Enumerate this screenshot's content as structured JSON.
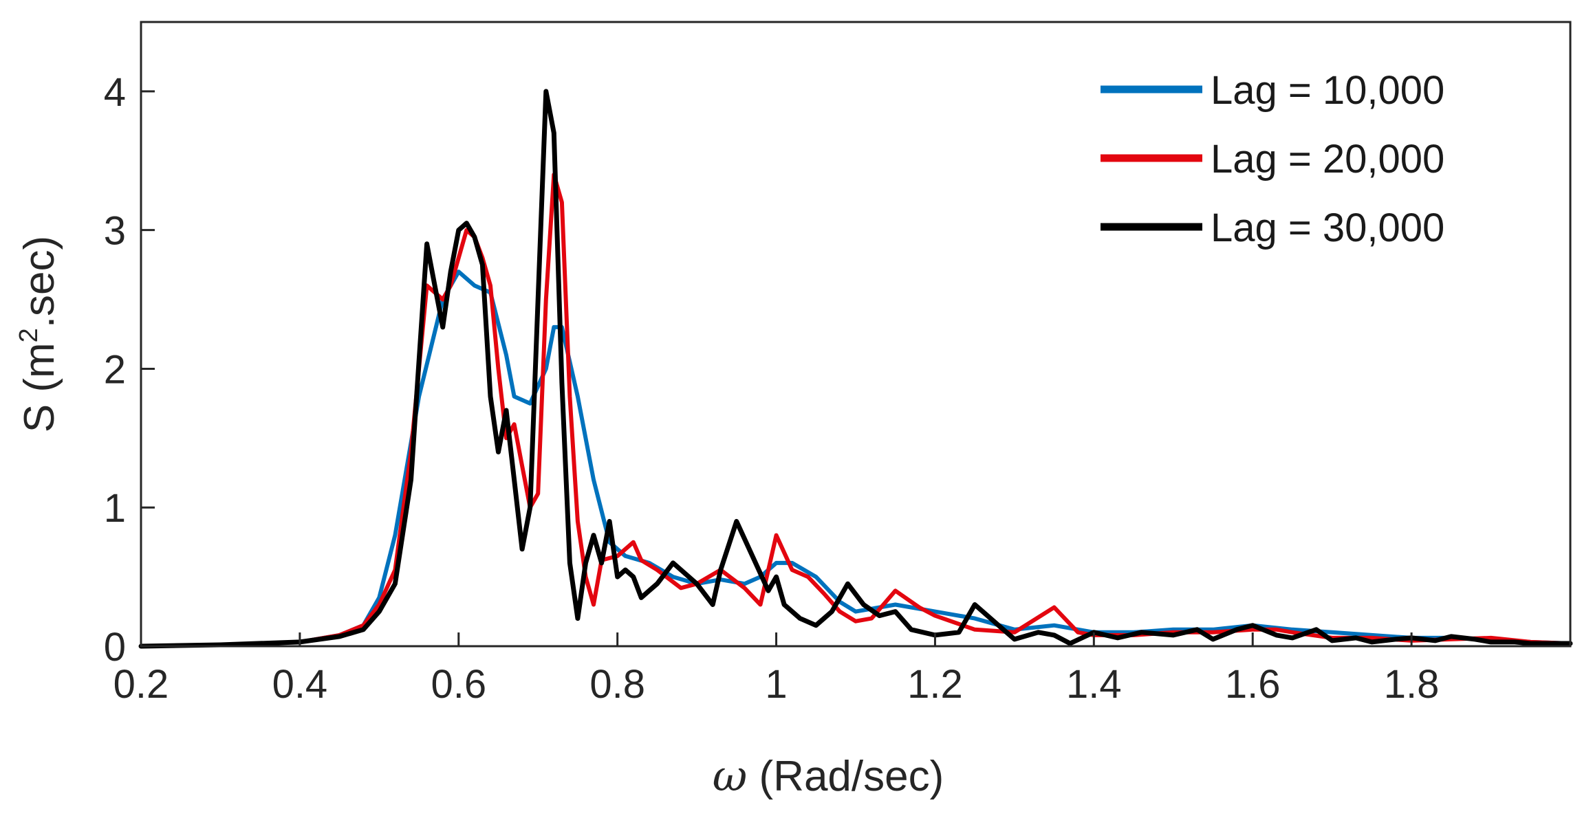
{
  "chart_data": {
    "type": "line",
    "xlabel_symbol": "ω",
    "xlabel_text": " (Rad/sec)",
    "ylabel_prefix": "S (m",
    "ylabel_sup": "2",
    "ylabel_suffix": ".sec)",
    "xlim": [
      0.2,
      2.0
    ],
    "ylim": [
      0,
      4.5
    ],
    "xticks": [
      0.2,
      0.4,
      0.6,
      0.8,
      1.0,
      1.2,
      1.4,
      1.6,
      1.8
    ],
    "xtick_labels": [
      "0.2",
      "0.4",
      "0.6",
      "0.8",
      "1",
      "1.2",
      "1.4",
      "1.6",
      "1.8"
    ],
    "yticks": [
      0,
      1,
      2,
      3,
      4
    ],
    "ytick_labels": [
      "0",
      "1",
      "2",
      "3",
      "4"
    ],
    "grid": false,
    "legend_position": "top-right",
    "series": [
      {
        "name": "Lag = 10,000",
        "color": "#0072BD",
        "x": [
          0.2,
          0.3,
          0.4,
          0.45,
          0.48,
          0.5,
          0.52,
          0.55,
          0.58,
          0.6,
          0.62,
          0.64,
          0.66,
          0.67,
          0.69,
          0.71,
          0.72,
          0.73,
          0.75,
          0.77,
          0.79,
          0.81,
          0.84,
          0.87,
          0.9,
          0.93,
          0.96,
          0.98,
          1.0,
          1.02,
          1.05,
          1.08,
          1.1,
          1.15,
          1.2,
          1.25,
          1.3,
          1.35,
          1.4,
          1.45,
          1.5,
          1.55,
          1.6,
          1.65,
          1.7,
          1.75,
          1.8,
          1.85,
          1.9,
          1.95,
          2.0
        ],
        "y": [
          0.0,
          0.01,
          0.03,
          0.08,
          0.15,
          0.35,
          0.8,
          1.8,
          2.5,
          2.7,
          2.6,
          2.55,
          2.1,
          1.8,
          1.75,
          2.0,
          2.3,
          2.3,
          1.8,
          1.2,
          0.75,
          0.65,
          0.6,
          0.5,
          0.45,
          0.48,
          0.45,
          0.5,
          0.6,
          0.6,
          0.5,
          0.32,
          0.25,
          0.3,
          0.25,
          0.2,
          0.12,
          0.15,
          0.1,
          0.1,
          0.12,
          0.12,
          0.15,
          0.12,
          0.1,
          0.08,
          0.06,
          0.06,
          0.05,
          0.03,
          0.02
        ]
      },
      {
        "name": "Lag = 20,000",
        "color": "#E3060F",
        "x": [
          0.2,
          0.3,
          0.4,
          0.45,
          0.48,
          0.5,
          0.52,
          0.54,
          0.56,
          0.58,
          0.59,
          0.6,
          0.61,
          0.62,
          0.63,
          0.64,
          0.65,
          0.66,
          0.67,
          0.68,
          0.69,
          0.7,
          0.71,
          0.72,
          0.73,
          0.74,
          0.75,
          0.76,
          0.77,
          0.78,
          0.8,
          0.82,
          0.83,
          0.85,
          0.88,
          0.9,
          0.93,
          0.96,
          0.98,
          1.0,
          1.02,
          1.04,
          1.06,
          1.08,
          1.1,
          1.12,
          1.15,
          1.18,
          1.2,
          1.25,
          1.3,
          1.35,
          1.38,
          1.4,
          1.45,
          1.5,
          1.55,
          1.6,
          1.63,
          1.65,
          1.7,
          1.75,
          1.8,
          1.85,
          1.9,
          1.95,
          2.0
        ],
        "y": [
          0.0,
          0.01,
          0.03,
          0.08,
          0.15,
          0.3,
          0.55,
          1.4,
          2.6,
          2.5,
          2.6,
          2.8,
          3.0,
          2.95,
          2.8,
          2.6,
          2.0,
          1.5,
          1.6,
          1.3,
          1.0,
          1.1,
          2.5,
          3.4,
          3.2,
          1.8,
          0.9,
          0.5,
          0.3,
          0.62,
          0.65,
          0.75,
          0.62,
          0.55,
          0.42,
          0.45,
          0.55,
          0.42,
          0.3,
          0.8,
          0.55,
          0.5,
          0.38,
          0.25,
          0.18,
          0.2,
          0.4,
          0.28,
          0.22,
          0.12,
          0.1,
          0.28,
          0.1,
          0.08,
          0.08,
          0.1,
          0.1,
          0.12,
          0.12,
          0.1,
          0.06,
          0.06,
          0.04,
          0.05,
          0.06,
          0.03,
          0.02
        ]
      },
      {
        "name": "Lag = 30,000",
        "color": "#000000",
        "x": [
          0.2,
          0.3,
          0.4,
          0.45,
          0.48,
          0.5,
          0.52,
          0.54,
          0.56,
          0.57,
          0.58,
          0.59,
          0.6,
          0.61,
          0.62,
          0.63,
          0.64,
          0.65,
          0.66,
          0.67,
          0.68,
          0.69,
          0.7,
          0.71,
          0.72,
          0.73,
          0.74,
          0.75,
          0.76,
          0.77,
          0.78,
          0.79,
          0.8,
          0.81,
          0.82,
          0.83,
          0.84,
          0.85,
          0.87,
          0.9,
          0.92,
          0.93,
          0.95,
          0.97,
          0.99,
          1.0,
          1.01,
          1.03,
          1.05,
          1.07,
          1.09,
          1.11,
          1.13,
          1.15,
          1.17,
          1.2,
          1.23,
          1.25,
          1.28,
          1.3,
          1.33,
          1.35,
          1.37,
          1.4,
          1.43,
          1.46,
          1.5,
          1.53,
          1.55,
          1.58,
          1.6,
          1.63,
          1.65,
          1.68,
          1.7,
          1.73,
          1.75,
          1.78,
          1.8,
          1.83,
          1.85,
          1.88,
          1.9,
          1.93,
          1.95,
          2.0
        ],
        "y": [
          0.0,
          0.01,
          0.03,
          0.07,
          0.12,
          0.25,
          0.45,
          1.2,
          2.9,
          2.6,
          2.3,
          2.7,
          3.0,
          3.05,
          2.95,
          2.75,
          1.8,
          1.4,
          1.7,
          1.2,
          0.7,
          1.0,
          2.5,
          4.0,
          3.7,
          1.9,
          0.6,
          0.2,
          0.6,
          0.8,
          0.6,
          0.9,
          0.5,
          0.55,
          0.5,
          0.35,
          0.4,
          0.45,
          0.6,
          0.45,
          0.3,
          0.55,
          0.9,
          0.65,
          0.4,
          0.5,
          0.3,
          0.2,
          0.15,
          0.25,
          0.45,
          0.3,
          0.22,
          0.25,
          0.12,
          0.08,
          0.1,
          0.3,
          0.15,
          0.05,
          0.1,
          0.08,
          0.02,
          0.1,
          0.06,
          0.1,
          0.08,
          0.12,
          0.05,
          0.12,
          0.15,
          0.08,
          0.06,
          0.12,
          0.04,
          0.06,
          0.03,
          0.05,
          0.06,
          0.04,
          0.07,
          0.05,
          0.03,
          0.03,
          0.02,
          0.02
        ]
      }
    ]
  }
}
